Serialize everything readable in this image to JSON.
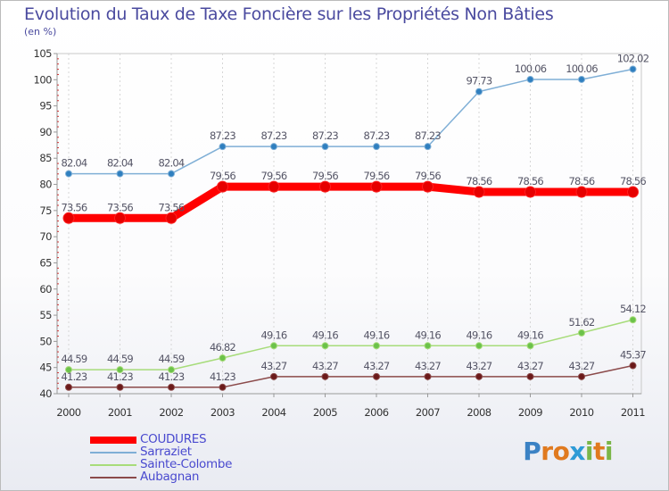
{
  "title": "Evolution du Taux de Taxe Foncière sur les Propriétés Non Bâties",
  "unit_label": "(en %)",
  "brand": {
    "letters": [
      {
        "ch": "P",
        "color": "#3b82c4"
      },
      {
        "ch": "r",
        "color": "#e07a1f"
      },
      {
        "ch": "o",
        "color": "#e07a1f"
      },
      {
        "ch": "x",
        "color": "#2e9bd6"
      },
      {
        "ch": "i",
        "color": "#7ab648"
      },
      {
        "ch": "t",
        "color": "#e07a1f"
      },
      {
        "ch": "i",
        "color": "#7ab648"
      }
    ]
  },
  "chart_data": {
    "type": "line",
    "title": "Evolution du Taux de Taxe Foncière sur les Propriétés Non Bâties",
    "ylabel": "(en %)",
    "xlabel": "",
    "ylim": [
      40,
      105
    ],
    "yticks": [
      "40",
      "45",
      "50",
      "55",
      "60",
      "65",
      "70",
      "75",
      "80",
      "85",
      "90",
      "95",
      "100",
      "105"
    ],
    "categories": [
      "2000",
      "2001",
      "2002",
      "2003",
      "2004",
      "2005",
      "2006",
      "2007",
      "2008",
      "2009",
      "2010",
      "2011"
    ],
    "legend_position": "bottom-left",
    "series": [
      {
        "name": "COUDURES",
        "color": "#ff0000",
        "marker": "#e60000",
        "thick": true,
        "values": [
          73.56,
          73.56,
          73.56,
          79.56,
          79.56,
          79.56,
          79.56,
          79.56,
          78.56,
          78.56,
          78.56,
          78.56
        ],
        "labels": [
          "73.56",
          "73.56",
          "73.56",
          "79.56",
          "79.56",
          "79.56",
          "79.56",
          "79.56",
          "78.56",
          "78.56",
          "78.56",
          "78.56"
        ]
      },
      {
        "name": "Sarraziet",
        "color": "#7fafd6",
        "marker": "#2f7fbf",
        "thick": false,
        "values": [
          82.04,
          82.04,
          82.04,
          87.23,
          87.23,
          87.23,
          87.23,
          87.23,
          97.73,
          100.06,
          100.06,
          102.02
        ],
        "labels": [
          "82.04",
          "82.04",
          "82.04",
          "87.23",
          "87.23",
          "87.23",
          "87.23",
          "87.23",
          "97.73",
          "100.06",
          "100.06",
          "102.02"
        ]
      },
      {
        "name": "Sainte-Colombe",
        "color": "#a7dc7a",
        "marker": "#6cc24a",
        "thick": false,
        "values": [
          44.59,
          44.59,
          44.59,
          46.82,
          49.16,
          49.16,
          49.16,
          49.16,
          49.16,
          49.16,
          51.62,
          54.12
        ],
        "labels": [
          "44.59",
          "44.59",
          "44.59",
          "46.82",
          "49.16",
          "49.16",
          "49.16",
          "49.16",
          "49.16",
          "49.16",
          "51.62",
          "54.12"
        ]
      },
      {
        "name": "Aubagnan",
        "color": "#8b4a4a",
        "marker": "#6b1a1a",
        "thick": false,
        "values": [
          41.23,
          41.23,
          41.23,
          41.23,
          43.27,
          43.27,
          43.27,
          43.27,
          43.27,
          43.27,
          43.27,
          45.37
        ],
        "labels": [
          "41.23",
          "41.23",
          "41.23",
          "41.23",
          "43.27",
          "43.27",
          "43.27",
          "43.27",
          "43.27",
          "43.27",
          "43.27",
          "45.37"
        ]
      }
    ]
  }
}
